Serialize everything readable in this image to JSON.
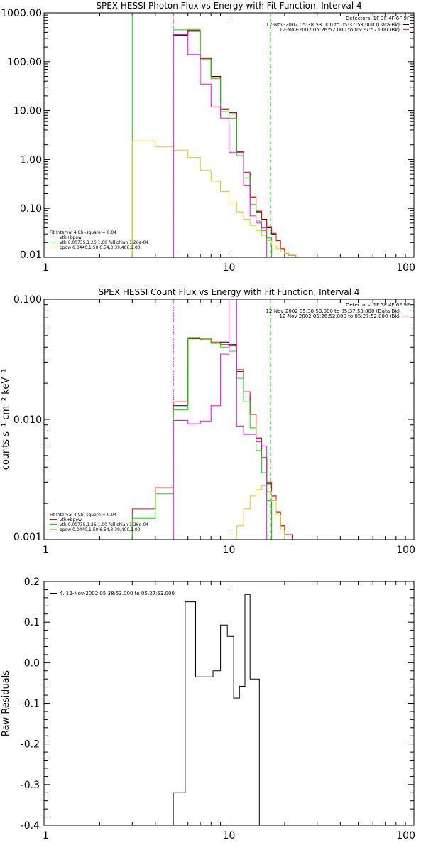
{
  "colors": {
    "background": "#ffffff",
    "axes": "#000000",
    "data": "#000000",
    "model_total": "#ff0000",
    "vth": "#00e000",
    "bpow": "#e8c800",
    "background_model": "#ff00ff",
    "bk_lines": "#ff00ff"
  },
  "chart_data": [
    {
      "type": "line",
      "title": "SPEX HESSI Photon Flux vs Energy with Fit Function, Interval 4",
      "xlabel": "",
      "ylabel": "",
      "xscale": "log",
      "yscale": "log",
      "xlim": [
        1,
        100
      ],
      "ylim": [
        0.01,
        1000
      ],
      "xticks": [
        "1",
        "10",
        "100"
      ],
      "yticks": [
        "1000.00",
        "100.00",
        "10.00",
        "1.00",
        "0.10",
        "0.01"
      ],
      "legend_header": "Detectors: 1F 3F 4F 6F 9F",
      "legend": [
        {
          "label": "12-Nov-2002 05:38:53.000 to 05:37:53.000 (Data-Bk)",
          "color": "#000000"
        },
        {
          "label": "12-Nov-2002 05:26:52.000 to 05:27:52.000 (Bk)",
          "color": "#ff00ff"
        }
      ],
      "fit_label": "Fit Interval 4   Chi-square = 0.04",
      "fit_legend": [
        {
          "label": "vth+bpow",
          "color": "#ff0000"
        },
        {
          "label": "vth 0.00735,1.26,1.00  full chian 1.26e-04",
          "color": "#00e000"
        },
        {
          "label": "bpow 0.0440,1.50,6.54,3.39,400,1.00",
          "color": "#e8c800"
        }
      ],
      "vlines": [
        {
          "x": 3.0,
          "color": "#00e000",
          "style": "solid"
        },
        {
          "x": 5.0,
          "color": "#00e000",
          "style": "dotted"
        },
        {
          "x": 5.0,
          "color": "#ff00ff",
          "style": "dashed"
        },
        {
          "x": 16.8,
          "color": "#000000",
          "style": "dashed"
        },
        {
          "x": 16.8,
          "color": "#00e000",
          "style": "dashed"
        }
      ],
      "series": [
        {
          "name": "Data",
          "color": "#000000",
          "edges": [
            5.0,
            6.0,
            7.0,
            8.0,
            9.0,
            10.0,
            11.0,
            12.0,
            13.0,
            14.0,
            15.0,
            16.0,
            17.0,
            18.0,
            19.0,
            20.0,
            21.0,
            23.0,
            25.0
          ],
          "values": [
            350,
            420,
            120,
            50,
            10.5,
            9,
            1.4,
            0.53,
            0.17,
            0.085,
            0.06,
            0.04,
            0.03,
            0.022,
            0.015,
            0.012,
            0.011,
            0.009
          ]
        },
        {
          "name": "vth+bpow",
          "color": "#ff0000",
          "edges": [
            5.0,
            6.0,
            7.0,
            8.0,
            9.0,
            10.0,
            11.0,
            12.0,
            13.0,
            14.0,
            15.0,
            16.0,
            17.0,
            18.0,
            19.0,
            20.0,
            21.0,
            23.0,
            25.0
          ],
          "values": [
            360,
            440,
            115,
            48,
            10.8,
            8.5,
            1.45,
            0.55,
            0.17,
            0.088,
            0.058,
            0.042,
            0.031,
            0.022,
            0.015,
            0.012,
            0.011,
            0.009
          ]
        },
        {
          "name": "vth",
          "color": "#00e000",
          "edges": [
            5.0,
            6.0,
            7.0,
            8.0,
            9.0,
            10.0,
            11.0,
            12.0,
            13.0,
            14.0,
            15.0,
            16.0,
            17.0
          ],
          "values": [
            450,
            460,
            110,
            45,
            9.5,
            7,
            1.2,
            0.42,
            0.12,
            0.055,
            0.035,
            0.025
          ]
        },
        {
          "name": "bpow",
          "color": "#e8c800",
          "edges": [
            3.0,
            4.0,
            5.0,
            6.0,
            7.0,
            8.0,
            9.0,
            10.0,
            11.0,
            12.0,
            13.0,
            14.0,
            15.0,
            16.0,
            17.0,
            18.0,
            19.0,
            20.0,
            21.0,
            23.0,
            25.0
          ],
          "values": [
            2.4,
            1.8,
            1.55,
            1.1,
            0.6,
            0.36,
            0.22,
            0.13,
            0.085,
            0.06,
            0.045,
            0.035,
            0.028,
            0.022,
            0.018,
            0.015,
            0.013,
            0.012,
            0.011,
            0.01
          ]
        },
        {
          "name": "Bk",
          "color": "#ff00ff",
          "edges": [
            5.0,
            6.0,
            7.0,
            8.0,
            9.0,
            10.0,
            11.0,
            12.0,
            13.0,
            14.0,
            15.0,
            16.0
          ],
          "values": [
            360,
            140,
            35,
            12,
            7,
            1.4,
            1.4,
            0.3,
            0.07,
            0.05,
            0.04
          ]
        }
      ]
    },
    {
      "type": "line",
      "title": "SPEX HESSI Count Flux vs Energy with Fit Function, Interval 4",
      "xlabel": "",
      "ylabel": "counts s⁻¹ cm⁻² keV⁻¹",
      "xscale": "log",
      "yscale": "log",
      "xlim": [
        1,
        100
      ],
      "ylim": [
        0.001,
        0.1
      ],
      "xticks": [
        "1",
        "10",
        "100"
      ],
      "yticks": [
        "0.100",
        "0.010",
        "0.001"
      ],
      "legend_header": "Detectors: 1F 3F 4F 6F 9F",
      "legend": [
        {
          "label": "12-Nov-2002 05:38:53.000 to 05:37:53.000 (Data-Bk)",
          "color": "#000000"
        },
        {
          "label": "12-Nov-2002 05:26:52.000 to 05:27:52.000 (Bk)",
          "color": "#ff00ff"
        }
      ],
      "fit_label": "Fit Interval 4   Chi-square = 0.04",
      "fit_legend": [
        {
          "label": "vth+bpow",
          "color": "#ff0000"
        },
        {
          "label": "vth 0.00735,1.26,1.00  full chian 1.26e-04",
          "color": "#00e000"
        },
        {
          "label": "bpow 0.0440,1.50,6.54,3.39,400,1.00",
          "color": "#e8c800"
        }
      ],
      "vlines": [
        {
          "x": 5.0,
          "color": "#000000",
          "style": "dotted"
        },
        {
          "x": 5.0,
          "color": "#ff00ff",
          "style": "dashed"
        },
        {
          "x": 16.8,
          "color": "#000000",
          "style": "dashed"
        },
        {
          "x": 16.8,
          "color": "#00e000",
          "style": "dashed"
        }
      ],
      "series": [
        {
          "name": "Data",
          "color": "#000000",
          "edges": [
            5.0,
            6.0,
            7.0,
            8.0,
            9.0,
            10.0,
            11.0,
            12.0,
            13.0,
            14.0,
            15.0,
            16.0,
            17.0,
            18.0,
            19.0,
            20.0,
            22.0,
            24.0
          ],
          "values": [
            0.013,
            0.047,
            0.046,
            0.043,
            0.044,
            0.042,
            0.025,
            0.016,
            0.011,
            0.007,
            0.0048,
            0.0029,
            0.0023,
            0.0017,
            0.0013,
            0.0011,
            0.001
          ]
        },
        {
          "name": "vth+bpow",
          "color": "#ff0000",
          "edges": [
            3.0,
            4.0,
            5.0,
            6.0,
            7.0,
            8.0,
            9.0,
            10.0,
            11.0,
            12.0,
            13.0,
            14.0,
            15.0,
            16.0,
            17.0,
            18.0,
            19.0,
            20.0,
            22.0,
            24.0
          ],
          "values": [
            0.0018,
            0.0027,
            0.014,
            0.047,
            0.046,
            0.044,
            0.042,
            0.041,
            0.026,
            0.017,
            0.011,
            0.007,
            0.0048,
            0.003,
            0.0023,
            0.0017,
            0.0013,
            0.0011,
            0.001
          ]
        },
        {
          "name": "vth",
          "color": "#00e000",
          "edges": [
            3.0,
            4.0,
            5.0,
            6.0,
            7.0,
            8.0,
            9.0,
            10.0,
            11.0,
            12.0,
            13.0,
            14.0,
            15.0,
            16.0,
            17.0
          ],
          "values": [
            0.0015,
            0.0024,
            0.012,
            0.048,
            0.047,
            0.043,
            0.04,
            0.037,
            0.022,
            0.014,
            0.0085,
            0.0055,
            0.0036,
            0.0021
          ]
        },
        {
          "name": "bpow",
          "color": "#e8c800",
          "edges": [
            10.0,
            11.0,
            12.0,
            13.0,
            14.0,
            15.0,
            16.0,
            17.0,
            18.0,
            19.0,
            20.0,
            22.0,
            24.0,
            26.0
          ],
          "values": [
            0.001,
            0.0013,
            0.0018,
            0.0023,
            0.0026,
            0.0028,
            0.0025,
            0.0021,
            0.0016,
            0.0012,
            0.001,
            0.001,
            0.001
          ]
        },
        {
          "name": "Bk",
          "color": "#ff00ff",
          "edges": [
            5.0,
            6.0,
            7.0,
            8.0,
            9.0,
            10.0,
            11.0,
            12.0,
            13.0,
            14.0,
            15.0,
            16.0
          ],
          "values": [
            0.0098,
            0.0092,
            0.0097,
            0.013,
            0.035,
            0.1,
            0.0088,
            0.0075,
            0.0075,
            0.0065,
            0.006
          ]
        }
      ]
    },
    {
      "type": "line",
      "title": "",
      "xlabel": "",
      "ylabel": "Raw Residuals",
      "xscale": "log",
      "yscale": "linear",
      "xlim": [
        1,
        100
      ],
      "ylim": [
        -0.4,
        0.2
      ],
      "xticks": [
        "1",
        "10",
        "100"
      ],
      "yticks": [
        "0.2",
        "0.1",
        "0.0",
        "-0.1",
        "-0.2",
        "-0.3",
        "-0.4"
      ],
      "legend": [
        {
          "label": "4. 12-Nov-2002 05:38:53.000 to 05:37:53.000",
          "color": "#000000"
        }
      ],
      "series": [
        {
          "name": "Residuals",
          "color": "#000000",
          "edges": [
            5.0,
            5.8,
            6.6,
            7.4,
            8.2,
            9.0,
            9.8,
            10.6,
            11.4,
            12.2,
            13.0,
            13.8,
            14.6,
            15.4,
            16.2,
            16.8
          ],
          "values": [
            -0.32,
            0.15,
            -0.035,
            -0.035,
            -0.02,
            0.093,
            0.065,
            -0.087,
            -0.058,
            0.168,
            -0.04,
            -0.04,
            -0.4,
            -0.4,
            -0.4
          ]
        }
      ]
    }
  ]
}
